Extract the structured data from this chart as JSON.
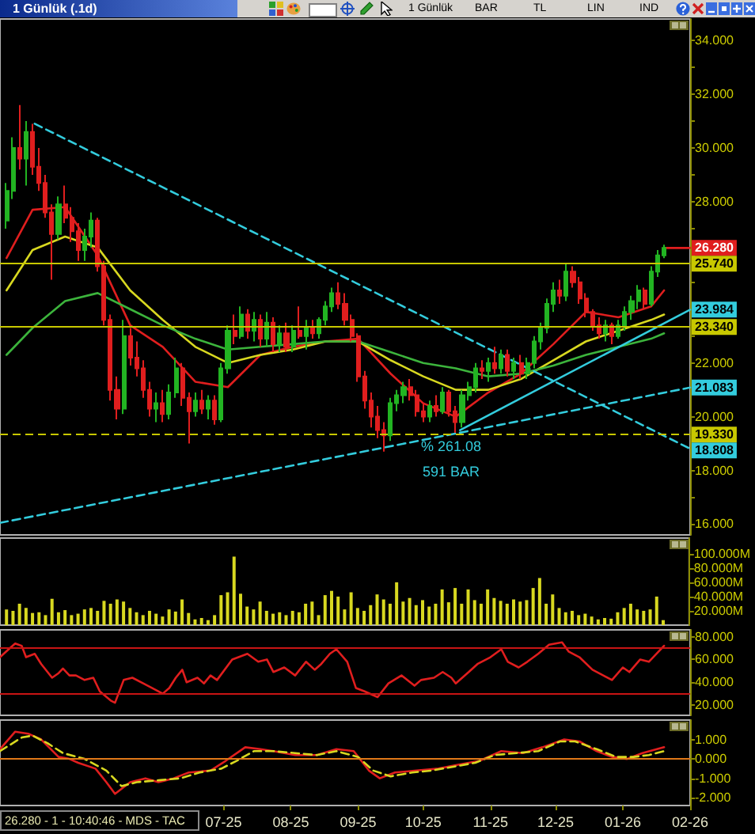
{
  "chart_data": [
    {
      "type": "candlestick",
      "title": "1 Günlük (.1d)",
      "annotations": [
        "1 Günlük",
        "BAR",
        "TL",
        "LIN",
        "IND",
        "% 261.08",
        "591 BAR"
      ],
      "x": [
        "2025-03-23",
        "2025-03-26",
        "2025-03-29",
        "2025-04-01",
        "2025-04-04",
        "2025-04-07",
        "2025-04-10",
        "2025-04-13",
        "2025-04-16",
        "2025-04-19",
        "2025-04-22",
        "2025-04-25",
        "2025-04-28",
        "2025-05-01",
        "2025-05-04",
        "2025-05-07",
        "2025-05-10",
        "2025-05-13",
        "2025-05-16",
        "2025-05-19",
        "2025-05-22",
        "2025-05-25",
        "2025-05-28",
        "2025-05-31",
        "2025-06-03",
        "2025-06-06",
        "2025-06-09",
        "2025-06-12",
        "2025-06-15",
        "2025-06-18",
        "2025-06-21",
        "2025-06-24",
        "2025-06-27",
        "2025-06-30",
        "2025-07-03",
        "2025-07-06",
        "2025-07-09",
        "2025-07-12",
        "2025-07-15",
        "2025-07-18",
        "2025-07-21",
        "2025-07-24",
        "2025-07-27",
        "2025-07-30",
        "2025-08-02",
        "2025-08-05",
        "2025-08-08",
        "2025-08-11",
        "2025-08-14",
        "2025-08-17",
        "2025-08-20",
        "2025-08-23",
        "2025-08-26",
        "2025-08-29",
        "2025-09-01",
        "2025-09-04",
        "2025-09-07",
        "2025-09-10",
        "2025-09-13",
        "2025-09-16",
        "2025-09-19",
        "2025-09-22",
        "2025-09-25",
        "2025-09-28",
        "2025-10-01",
        "2025-10-04",
        "2025-10-07",
        "2025-10-10",
        "2025-10-13",
        "2025-10-16",
        "2025-10-19",
        "2025-10-22",
        "2025-10-25",
        "2025-10-28",
        "2025-10-31",
        "2025-11-03",
        "2025-11-06",
        "2025-11-09",
        "2025-11-12",
        "2025-11-15",
        "2025-11-18",
        "2025-11-21",
        "2025-11-24",
        "2025-11-27",
        "2025-11-30",
        "2025-12-03",
        "2025-12-06",
        "2025-12-09",
        "2025-12-12",
        "2025-12-15",
        "2025-12-18",
        "2025-12-21",
        "2025-12-24",
        "2025-12-27",
        "2025-12-30",
        "2026-01-02",
        "2026-01-05",
        "2026-01-08",
        "2026-01-11",
        "2026-01-14",
        "2026-01-17",
        "2026-01-20"
      ],
      "ohlc": [
        [
          27.3,
          28.7,
          27.0,
          28.4
        ],
        [
          28.4,
          30.4,
          28.1,
          30.0
        ],
        [
          30.0,
          31.6,
          29.2,
          29.6
        ],
        [
          29.6,
          31.0,
          28.6,
          30.6
        ],
        [
          30.6,
          30.9,
          29.0,
          29.3
        ],
        [
          29.3,
          30.0,
          28.4,
          28.7
        ],
        [
          28.7,
          29.0,
          27.4,
          27.6
        ],
        [
          27.6,
          27.9,
          25.1,
          26.8
        ],
        [
          26.8,
          28.2,
          26.6,
          27.9
        ],
        [
          27.9,
          28.6,
          27.2,
          27.4
        ],
        [
          27.4,
          27.8,
          26.5,
          26.9
        ],
        [
          26.9,
          27.2,
          25.8,
          26.2
        ],
        [
          26.2,
          27.0,
          25.8,
          26.7
        ],
        [
          26.7,
          27.6,
          26.3,
          27.3
        ],
        [
          27.3,
          27.4,
          25.4,
          25.6
        ],
        [
          25.6,
          25.8,
          23.4,
          23.6
        ],
        [
          23.6,
          23.8,
          20.6,
          21.0
        ],
        [
          21.0,
          21.5,
          19.9,
          20.3
        ],
        [
          20.3,
          23.6,
          20.1,
          23.0
        ],
        [
          23.0,
          23.3,
          21.9,
          22.2
        ],
        [
          22.2,
          22.8,
          21.5,
          21.8
        ],
        [
          21.8,
          22.1,
          20.7,
          21.0
        ],
        [
          21.0,
          21.3,
          20.0,
          20.3
        ],
        [
          20.3,
          20.9,
          19.8,
          20.5
        ],
        [
          20.5,
          21.0,
          19.8,
          20.1
        ],
        [
          20.1,
          21.2,
          19.9,
          20.9
        ],
        [
          20.9,
          22.2,
          20.7,
          21.8
        ],
        [
          21.8,
          22.0,
          20.4,
          20.7
        ],
        [
          20.7,
          20.9,
          19.0,
          20.2
        ],
        [
          20.2,
          20.9,
          20.0,
          20.6
        ],
        [
          20.6,
          21.0,
          20.1,
          20.3
        ],
        [
          20.3,
          20.8,
          19.9,
          20.6
        ],
        [
          20.6,
          20.8,
          19.7,
          19.9
        ],
        [
          19.9,
          22.0,
          19.8,
          21.8
        ],
        [
          21.8,
          23.4,
          21.6,
          23.2
        ],
        [
          23.2,
          23.8,
          22.7,
          23.0
        ],
        [
          23.0,
          24.1,
          22.9,
          23.8
        ],
        [
          23.8,
          24.0,
          22.9,
          23.2
        ],
        [
          23.2,
          23.9,
          22.8,
          23.6
        ],
        [
          23.6,
          23.8,
          22.6,
          22.9
        ],
        [
          22.9,
          23.9,
          22.6,
          23.5
        ],
        [
          23.5,
          23.7,
          22.4,
          22.7
        ],
        [
          22.7,
          23.4,
          22.4,
          23.1
        ],
        [
          23.1,
          23.5,
          22.4,
          22.6
        ],
        [
          22.6,
          23.4,
          22.4,
          23.2
        ],
        [
          23.2,
          24.1,
          22.9,
          23.0
        ],
        [
          23.0,
          23.6,
          22.5,
          23.3
        ],
        [
          23.3,
          23.6,
          22.9,
          23.1
        ],
        [
          23.1,
          23.7,
          22.9,
          23.6
        ],
        [
          23.6,
          24.3,
          23.4,
          24.1
        ],
        [
          24.1,
          24.8,
          23.9,
          24.6
        ],
        [
          24.6,
          25.0,
          24.0,
          24.2
        ],
        [
          24.2,
          24.6,
          23.4,
          23.6
        ],
        [
          23.6,
          23.8,
          22.8,
          23.0
        ],
        [
          23.0,
          23.1,
          21.3,
          21.5
        ],
        [
          21.5,
          21.7,
          20.3,
          20.6
        ],
        [
          20.6,
          20.9,
          19.6,
          20.0
        ],
        [
          20.0,
          20.4,
          19.2,
          19.5
        ],
        [
          19.5,
          19.8,
          18.7,
          19.3
        ],
        [
          19.3,
          20.7,
          19.1,
          20.5
        ],
        [
          20.5,
          21.0,
          20.2,
          20.8
        ],
        [
          20.8,
          21.3,
          20.5,
          21.1
        ],
        [
          21.1,
          21.4,
          20.6,
          20.8
        ],
        [
          20.8,
          21.0,
          20.0,
          20.2
        ],
        [
          20.2,
          20.5,
          19.8,
          20.0
        ],
        [
          20.0,
          20.6,
          19.8,
          20.4
        ],
        [
          20.4,
          20.8,
          20.0,
          20.2
        ],
        [
          20.2,
          21.1,
          20.1,
          20.9
        ],
        [
          20.9,
          21.0,
          20.0,
          20.2
        ],
        [
          20.2,
          20.4,
          19.4,
          19.8
        ],
        [
          19.8,
          21.0,
          19.6,
          20.8
        ],
        [
          20.8,
          21.3,
          20.6,
          21.1
        ],
        [
          21.1,
          22.0,
          20.9,
          21.8
        ],
        [
          21.8,
          22.1,
          21.4,
          21.7
        ],
        [
          21.7,
          22.2,
          21.3,
          22.0
        ],
        [
          22.0,
          22.6,
          21.6,
          21.8
        ],
        [
          21.8,
          22.5,
          21.6,
          22.3
        ],
        [
          22.3,
          22.5,
          21.5,
          21.7
        ],
        [
          21.7,
          22.2,
          21.4,
          22.0
        ],
        [
          22.0,
          22.3,
          21.4,
          21.6
        ],
        [
          21.6,
          22.2,
          21.4,
          22.0
        ],
        [
          22.0,
          23.0,
          21.8,
          22.8
        ],
        [
          22.8,
          23.5,
          22.5,
          23.3
        ],
        [
          23.3,
          24.4,
          23.1,
          24.2
        ],
        [
          24.2,
          25.0,
          23.9,
          24.7
        ],
        [
          24.7,
          25.1,
          24.2,
          24.5
        ],
        [
          24.5,
          25.7,
          24.3,
          25.4
        ],
        [
          25.4,
          25.6,
          24.8,
          25.0
        ],
        [
          25.0,
          25.2,
          24.2,
          24.4
        ],
        [
          24.4,
          24.6,
          23.7,
          23.9
        ],
        [
          23.9,
          24.0,
          23.2,
          23.4
        ],
        [
          23.4,
          23.7,
          22.9,
          23.1
        ],
        [
          23.1,
          23.6,
          22.8,
          23.4
        ],
        [
          23.4,
          23.5,
          22.7,
          23.0
        ],
        [
          23.0,
          23.6,
          22.9,
          23.4
        ],
        [
          23.4,
          24.1,
          23.2,
          23.9
        ],
        [
          23.9,
          24.5,
          23.6,
          24.3
        ],
        [
          24.3,
          24.9,
          24.0,
          24.7
        ],
        [
          24.7,
          24.8,
          24.0,
          24.2
        ],
        [
          24.2,
          25.6,
          24.1,
          25.4
        ],
        [
          25.4,
          26.2,
          25.2,
          26.0
        ],
        [
          26.0,
          26.4,
          25.9,
          26.28
        ]
      ],
      "colors": [
        "#22b422",
        "#22b422",
        "#e01e1e",
        "#22b422",
        "#e01e1e",
        "#e01e1e",
        "#e01e1e",
        "#e01e1e",
        "#22b422",
        "#e01e1e",
        "#e01e1e",
        "#e01e1e",
        "#22b422",
        "#22b422",
        "#e01e1e",
        "#e01e1e",
        "#e01e1e",
        "#e01e1e",
        "#22b422",
        "#e01e1e",
        "#e01e1e",
        "#e01e1e",
        "#e01e1e",
        "#22b422",
        "#e01e1e",
        "#22b422",
        "#22b422",
        "#e01e1e",
        "#e01e1e",
        "#22b422",
        "#e01e1e",
        "#22b422",
        "#e01e1e",
        "#22b422",
        "#22b422",
        "#e01e1e",
        "#22b422",
        "#e01e1e",
        "#22b422",
        "#e01e1e",
        "#22b422",
        "#e01e1e",
        "#22b422",
        "#e01e1e",
        "#22b422",
        "#e01e1e",
        "#22b422",
        "#e01e1e",
        "#22b422",
        "#22b422",
        "#22b422",
        "#e01e1e",
        "#e01e1e",
        "#e01e1e",
        "#e01e1e",
        "#e01e1e",
        "#e01e1e",
        "#e01e1e",
        "#e01e1e",
        "#22b422",
        "#22b422",
        "#22b422",
        "#e01e1e",
        "#e01e1e",
        "#e01e1e",
        "#22b422",
        "#e01e1e",
        "#22b422",
        "#e01e1e",
        "#e01e1e",
        "#22b422",
        "#22b422",
        "#22b422",
        "#e01e1e",
        "#22b422",
        "#e01e1e",
        "#22b422",
        "#e01e1e",
        "#22b422",
        "#e01e1e",
        "#22b422",
        "#22b422",
        "#22b422",
        "#22b422",
        "#22b422",
        "#e01e1e",
        "#22b422",
        "#e01e1e",
        "#e01e1e",
        "#e01e1e",
        "#e01e1e",
        "#e01e1e",
        "#22b422",
        "#e01e1e",
        "#22b422",
        "#22b422",
        "#22b422",
        "#22b422",
        "#e01e1e",
        "#22b422",
        "#22b422",
        "#22b422"
      ],
      "series": [
        {
          "type": "line",
          "color": "#e01e1e",
          "x": [
            "2025-03-23",
            "2025-04-04",
            "2025-04-19",
            "2025-05-04",
            "2025-05-19",
            "2025-06-03",
            "2025-06-18",
            "2025-07-03",
            "2025-07-18",
            "2025-08-02",
            "2025-08-17",
            "2025-09-01",
            "2025-09-16",
            "2025-10-01",
            "2025-10-16",
            "2025-10-31",
            "2025-11-15",
            "2025-11-30",
            "2025-12-15",
            "2025-12-30",
            "2026-01-14",
            "2026-01-20"
          ],
          "values": [
            25.9,
            27.7,
            27.8,
            26.0,
            23.4,
            22.6,
            21.3,
            21.1,
            22.3,
            22.6,
            22.8,
            22.9,
            21.6,
            20.5,
            20.0,
            20.9,
            21.6,
            22.7,
            23.9,
            23.7,
            24.1,
            24.7
          ]
        },
        {
          "type": "line",
          "color": "#d8d820",
          "x": [
            "2025-03-23",
            "2025-04-04",
            "2025-04-19",
            "2025-05-04",
            "2025-05-19",
            "2025-06-03",
            "2025-06-18",
            "2025-07-03",
            "2025-07-18",
            "2025-08-02",
            "2025-08-17",
            "2025-09-01",
            "2025-09-16",
            "2025-10-01",
            "2025-10-16",
            "2025-10-31",
            "2025-11-15",
            "2025-11-30",
            "2025-12-15",
            "2025-12-30",
            "2026-01-14",
            "2026-01-20"
          ],
          "values": [
            24.7,
            26.2,
            26.7,
            26.3,
            24.7,
            23.6,
            22.6,
            22.0,
            22.3,
            22.5,
            22.8,
            22.8,
            22.1,
            21.5,
            21.0,
            21.0,
            21.4,
            22.1,
            22.8,
            23.2,
            23.6,
            23.8
          ]
        },
        {
          "type": "line",
          "color": "#3cb43c",
          "x": [
            "2025-03-23",
            "2025-04-04",
            "2025-04-19",
            "2025-05-04",
            "2025-05-19",
            "2025-06-03",
            "2025-06-18",
            "2025-07-03",
            "2025-07-18",
            "2025-08-02",
            "2025-08-17",
            "2025-09-01",
            "2025-09-16",
            "2025-10-01",
            "2025-10-16",
            "2025-10-31",
            "2025-11-15",
            "2025-11-30",
            "2025-12-15",
            "2025-12-30",
            "2026-01-14",
            "2026-01-20"
          ],
          "values": [
            22.3,
            23.3,
            24.3,
            24.6,
            24.0,
            23.4,
            22.9,
            22.5,
            22.6,
            22.7,
            22.8,
            22.8,
            22.4,
            22.0,
            21.8,
            21.5,
            21.6,
            21.9,
            22.3,
            22.6,
            22.9,
            23.1
          ]
        },
        {
          "type": "line",
          "color": "#33ccdd",
          "line_style": "dashed",
          "x": [
            "2025-04-05",
            "2026-02-01"
          ],
          "values": [
            30.9,
            18.808
          ],
          "value_labels": [
            null,
            "18.808"
          ]
        },
        {
          "type": "line",
          "color": "#33ccdd",
          "line_style": "dashed",
          "x": [
            "2025-03-20",
            "2026-02-01"
          ],
          "values": [
            16.05,
            21.083
          ],
          "value_labels": [
            null,
            "21.083"
          ]
        },
        {
          "type": "line",
          "color": "#33ccdd",
          "x": [
            "2025-10-18",
            "2026-02-01"
          ],
          "values": [
            19.5,
            23.984
          ],
          "value_labels": [
            null,
            "23.984"
          ]
        },
        {
          "type": "line",
          "color": "#e01e1e",
          "x": [
            "2026-01-20",
            "2026-02-01"
          ],
          "values": [
            26.28,
            26.28
          ],
          "value_labels": [
            null,
            "26.280"
          ]
        }
      ],
      "xlim": [
        "2025-03-20",
        "2026-02-01"
      ],
      "ylim": [
        15.6,
        34.8
      ],
      "yticks": [
        {
          "value": 16,
          "label": "16.000"
        },
        {
          "value": 17,
          "label": null
        },
        {
          "value": 18,
          "label": "18.000"
        },
        {
          "value": 19,
          "label": null
        },
        {
          "value": 20,
          "label": "20.000"
        },
        {
          "value": 21,
          "label": null
        },
        {
          "value": 22,
          "label": "22.000"
        },
        {
          "value": 23,
          "label": null
        },
        {
          "value": 24,
          "label": null
        },
        {
          "value": 25,
          "label": null
        },
        {
          "value": 26,
          "label": null
        },
        {
          "value": 27,
          "label": null
        },
        {
          "value": 28,
          "label": "28.000"
        },
        {
          "value": 29,
          "label": null
        },
        {
          "value": 30,
          "label": "30.000"
        },
        {
          "value": 31,
          "label": null
        },
        {
          "value": 32,
          "label": "32.000"
        },
        {
          "value": 33,
          "label": null
        },
        {
          "value": 34,
          "label": "34.000"
        }
      ],
      "ref_lines": [
        {
          "axis": "y",
          "value": 25.74,
          "label": "25.740",
          "color": "#c8c800"
        },
        {
          "axis": "y",
          "value": 23.34,
          "label": "23.340",
          "color": "#c8c800"
        },
        {
          "axis": "y",
          "value": 19.33,
          "label": "19.330",
          "color": "#c8c800",
          "line_style": "dashed"
        }
      ],
      "tick_labels": "y"
    },
    {
      "type": "bar",
      "color": "#d8d820",
      "x": [
        "2025-03-23",
        "2025-03-26",
        "2025-03-29",
        "2025-04-01",
        "2025-04-04",
        "2025-04-07",
        "2025-04-10",
        "2025-04-13",
        "2025-04-16",
        "2025-04-19",
        "2025-04-22",
        "2025-04-25",
        "2025-04-28",
        "2025-05-01",
        "2025-05-04",
        "2025-05-07",
        "2025-05-10",
        "2025-05-13",
        "2025-05-16",
        "2025-05-19",
        "2025-05-22",
        "2025-05-25",
        "2025-05-28",
        "2025-05-31",
        "2025-06-03",
        "2025-06-06",
        "2025-06-09",
        "2025-06-12",
        "2025-06-15",
        "2025-06-18",
        "2025-06-21",
        "2025-06-24",
        "2025-06-27",
        "2025-06-30",
        "2025-07-03",
        "2025-07-06",
        "2025-07-09",
        "2025-07-12",
        "2025-07-15",
        "2025-07-18",
        "2025-07-21",
        "2025-07-24",
        "2025-07-27",
        "2025-07-30",
        "2025-08-02",
        "2025-08-05",
        "2025-08-08",
        "2025-08-11",
        "2025-08-14",
        "2025-08-17",
        "2025-08-20",
        "2025-08-23",
        "2025-08-26",
        "2025-08-29",
        "2025-09-01",
        "2025-09-04",
        "2025-09-07",
        "2025-09-10",
        "2025-09-13",
        "2025-09-16",
        "2025-09-19",
        "2025-09-22",
        "2025-09-25",
        "2025-09-28",
        "2025-10-01",
        "2025-10-04",
        "2025-10-07",
        "2025-10-10",
        "2025-10-13",
        "2025-10-16",
        "2025-10-19",
        "2025-10-22",
        "2025-10-25",
        "2025-10-28",
        "2025-10-31",
        "2025-11-03",
        "2025-11-06",
        "2025-11-09",
        "2025-11-12",
        "2025-11-15",
        "2025-11-18",
        "2025-11-21",
        "2025-11-24",
        "2025-11-27",
        "2025-11-30",
        "2025-12-03",
        "2025-12-06",
        "2025-12-09",
        "2025-12-12",
        "2025-12-15",
        "2025-12-18",
        "2025-12-21",
        "2025-12-24",
        "2025-12-27",
        "2025-12-30",
        "2026-01-02",
        "2026-01-05",
        "2026-01-08",
        "2026-01-11",
        "2026-01-14",
        "2026-01-17",
        "2026-01-20"
      ],
      "values": [
        22,
        20,
        30,
        24,
        17,
        18,
        14,
        37,
        18,
        21,
        14,
        16,
        22,
        24,
        20,
        34,
        30,
        36,
        33,
        24,
        18,
        14,
        20,
        16,
        12,
        22,
        19,
        36,
        17,
        8,
        10,
        7,
        14,
        42,
        46,
        96,
        44,
        26,
        22,
        33,
        20,
        16,
        18,
        14,
        20,
        18,
        30,
        33,
        14,
        42,
        48,
        40,
        22,
        46,
        24,
        20,
        28,
        43,
        36,
        30,
        60,
        33,
        38,
        28,
        35,
        26,
        30,
        50,
        32,
        52,
        30,
        50,
        35,
        30,
        50,
        38,
        34,
        30,
        36,
        33,
        35,
        52,
        66,
        30,
        43,
        24,
        18,
        20,
        14,
        16,
        12,
        8,
        10,
        9,
        18,
        24,
        30,
        22,
        20,
        22,
        40,
        7
      ],
      "xlim": [
        "2025-03-20",
        "2026-02-01"
      ],
      "ylim": [
        0,
        122
      ],
      "yticks": [
        {
          "value": 20,
          "label": "20.000M"
        },
        {
          "value": 40,
          "label": "40.000M"
        },
        {
          "value": 60,
          "label": "60.000M"
        },
        {
          "value": 80,
          "label": "80.000M"
        },
        {
          "value": 100,
          "label": "100.000M"
        }
      ],
      "tick_labels": "y"
    },
    {
      "type": "line",
      "color": "#e01e1e",
      "x": [
        "2025-03-20",
        "2025-03-24",
        "2025-03-27",
        "2025-03-30",
        "2025-04-01",
        "2025-04-05",
        "2025-04-08",
        "2025-04-13",
        "2025-04-16",
        "2025-04-18",
        "2025-04-21",
        "2025-04-24",
        "2025-04-28",
        "2025-05-02",
        "2025-05-05",
        "2025-05-10",
        "2025-05-12",
        "2025-05-16",
        "2025-05-20",
        "2025-05-25",
        "2025-05-29",
        "2025-06-03",
        "2025-06-06",
        "2025-06-09",
        "2025-06-12",
        "2025-06-14",
        "2025-06-19",
        "2025-06-22",
        "2025-06-25",
        "2025-06-28",
        "2025-07-05",
        "2025-07-12",
        "2025-07-17",
        "2025-07-21",
        "2025-07-24",
        "2025-07-29",
        "2025-08-03",
        "2025-08-08",
        "2025-08-12",
        "2025-08-15",
        "2025-08-19",
        "2025-08-22",
        "2025-08-27",
        "2025-08-31",
        "2025-09-04",
        "2025-09-10",
        "2025-09-15",
        "2025-09-21",
        "2025-09-27",
        "2025-09-30",
        "2025-10-06",
        "2025-10-10",
        "2025-10-14",
        "2025-10-16",
        "2025-10-22",
        "2025-10-26",
        "2025-11-01",
        "2025-11-06",
        "2025-11-09",
        "2025-11-14",
        "2025-11-18",
        "2025-11-23",
        "2025-11-28",
        "2025-12-04",
        "2025-12-07",
        "2025-12-12",
        "2025-12-18",
        "2025-12-23",
        "2025-12-27",
        "2026-01-01",
        "2026-01-04",
        "2026-01-09",
        "2026-01-13",
        "2026-01-20"
      ],
      "values": [
        62,
        69,
        74,
        72,
        62,
        65,
        56,
        44,
        48,
        52,
        46,
        46,
        42,
        44,
        32,
        24,
        22,
        42,
        44,
        39,
        35,
        30,
        35,
        44,
        51,
        40,
        44,
        39,
        46,
        42,
        60,
        65,
        58,
        60,
        49,
        53,
        46,
        58,
        51,
        56,
        65,
        69,
        58,
        35,
        32,
        27,
        39,
        46,
        37,
        42,
        44,
        49,
        44,
        39,
        49,
        56,
        62,
        69,
        58,
        53,
        58,
        65,
        73,
        75,
        67,
        62,
        51,
        46,
        42,
        53,
        49,
        60,
        58,
        72
      ],
      "xlim": [
        "2025-03-20",
        "2026-02-01"
      ],
      "ylim": [
        11,
        86
      ],
      "yticks": [
        {
          "value": 20,
          "label": "20.000"
        },
        {
          "value": 40,
          "label": "40.000"
        },
        {
          "value": 60,
          "label": "60.000"
        },
        {
          "value": 80,
          "label": "80.000"
        }
      ],
      "ref_lines": [
        {
          "axis": "y",
          "value": 70,
          "color": "#c81414"
        },
        {
          "axis": "y",
          "value": 30,
          "color": "#c81414"
        }
      ],
      "tick_labels": "y"
    },
    {
      "type": "line",
      "annotations": [
        "26.280 - 1 - 10:40:46 - MDS - TAC"
      ],
      "series": [
        {
          "color": "#e01e1e",
          "x": [
            "2025-03-20",
            "2025-03-27",
            "2025-04-02",
            "2025-04-08",
            "2025-04-16",
            "2025-04-21",
            "2025-04-25",
            "2025-05-03",
            "2025-05-08",
            "2025-05-12",
            "2025-05-19",
            "2025-05-26",
            "2025-06-01",
            "2025-06-08",
            "2025-06-15",
            "2025-06-25",
            "2025-07-02",
            "2025-07-11",
            "2025-07-18",
            "2025-07-24",
            "2025-08-03",
            "2025-08-13",
            "2025-08-22",
            "2025-08-30",
            "2025-09-06",
            "2025-09-11",
            "2025-09-18",
            "2025-09-28",
            "2025-10-08",
            "2025-10-17",
            "2025-10-27",
            "2025-11-06",
            "2025-11-16",
            "2025-11-25",
            "2025-12-05",
            "2025-12-12",
            "2025-12-20",
            "2025-12-27",
            "2026-01-03",
            "2026-01-10",
            "2026-01-20"
          ],
          "values": [
            0.5,
            1.4,
            1.3,
            1.0,
            0.1,
            0.0,
            -0.2,
            -0.5,
            -1.2,
            -1.8,
            -1.2,
            -1.0,
            -1.2,
            -1.0,
            -0.7,
            -0.6,
            -0.1,
            0.6,
            0.5,
            0.4,
            0.2,
            0.2,
            0.5,
            0.4,
            -0.6,
            -1.0,
            -0.7,
            -0.6,
            -0.5,
            -0.3,
            -0.1,
            0.4,
            0.3,
            0.6,
            1.0,
            0.9,
            0.4,
            0.1,
            0.0,
            0.3,
            0.6
          ]
        },
        {
          "color": "#d8d820",
          "line_style": "dashed",
          "x": [
            "2025-03-20",
            "2025-03-30",
            "2025-04-04",
            "2025-04-11",
            "2025-04-18",
            "2025-04-28",
            "2025-05-08",
            "2025-05-15",
            "2025-05-22",
            "2025-06-01",
            "2025-06-11",
            "2025-06-20",
            "2025-06-30",
            "2025-07-07",
            "2025-07-15",
            "2025-07-24",
            "2025-08-03",
            "2025-08-13",
            "2025-08-22",
            "2025-09-01",
            "2025-09-08",
            "2025-09-16",
            "2025-09-26",
            "2025-10-05",
            "2025-10-15",
            "2025-10-25",
            "2025-11-03",
            "2025-11-13",
            "2025-11-23",
            "2025-12-03",
            "2025-12-10",
            "2025-12-20",
            "2025-12-29",
            "2026-01-06",
            "2026-01-13",
            "2026-01-20"
          ],
          "values": [
            0.4,
            1.1,
            1.2,
            0.8,
            0.3,
            0.0,
            -0.6,
            -1.4,
            -1.2,
            -1.1,
            -1.0,
            -0.7,
            -0.5,
            -0.1,
            0.4,
            0.4,
            0.3,
            0.2,
            0.4,
            0.1,
            -0.6,
            -0.9,
            -0.7,
            -0.6,
            -0.4,
            -0.2,
            0.2,
            0.3,
            0.4,
            0.9,
            0.9,
            0.5,
            0.1,
            0.1,
            0.2,
            0.4
          ]
        }
      ],
      "xlim": [
        "2025-03-20",
        "2026-02-01"
      ],
      "xticks": [
        {
          "value": "2025-07-01",
          "label": "07-25"
        },
        {
          "value": "2025-08-01",
          "label": "08-25"
        },
        {
          "value": "2025-09-01",
          "label": "09-25"
        },
        {
          "value": "2025-10-01",
          "label": "10-25"
        },
        {
          "value": "2025-11-01",
          "label": "11-25"
        },
        {
          "value": "2025-12-01",
          "label": "12-25"
        },
        {
          "value": "2026-01-01",
          "label": "01-26"
        },
        {
          "value": "2026-02-01",
          "label": "02-26"
        }
      ],
      "ylim": [
        -2.4,
        2.0
      ],
      "yticks": [
        {
          "value": -2,
          "label": "-2.000"
        },
        {
          "value": -1,
          "label": "-1.000"
        },
        {
          "value": 0,
          "label": "0.000"
        },
        {
          "value": 1,
          "label": "1.000"
        }
      ],
      "ref_lines": [
        {
          "axis": "y",
          "value": 0,
          "color": "#e07818"
        }
      ]
    }
  ]
}
